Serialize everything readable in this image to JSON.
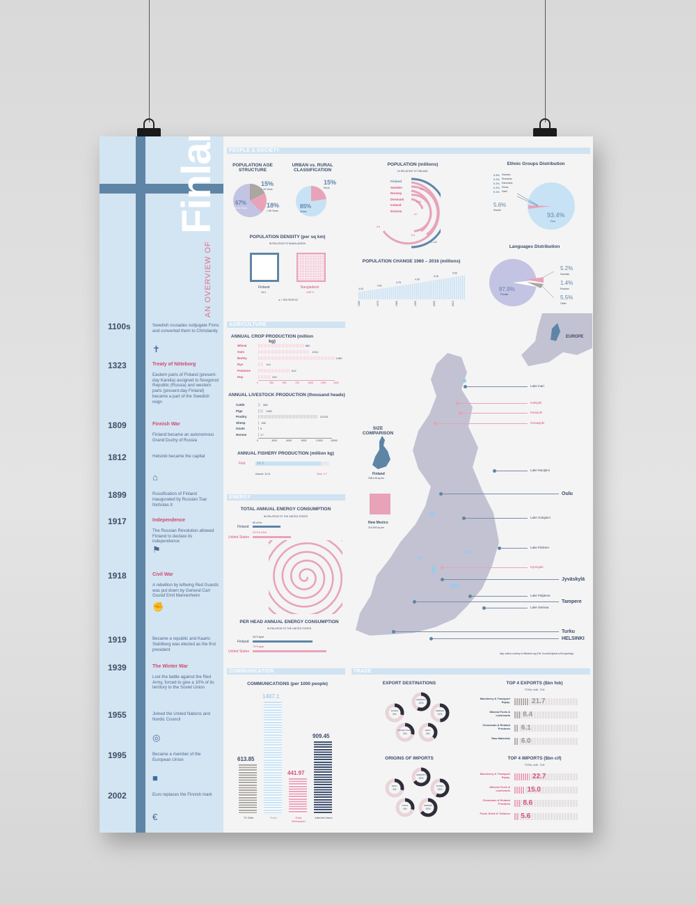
{
  "title": "Finland",
  "subtitle": "AN OVERVIEW OF",
  "sections": {
    "people": "PEOPLE & SOCIETY",
    "agriculture": "AGRICULTURE",
    "energy": "ENERGY",
    "communication": "COMMUNICATION",
    "trade": "TRADE"
  },
  "timeline": [
    {
      "year": "1100s",
      "title": "",
      "text": "Swedish crusades subjugate Finns and converted them to Christianity",
      "icon": "cross-icon"
    },
    {
      "year": "1323",
      "title": "Treaty of Nöteborg",
      "text": "Eastern parts of Finland (present-day Karelia) assigned to Novgorod Republic (Russia) and western parts (present-day Finland) became a part of the Swedish reign",
      "icon": ""
    },
    {
      "year": "1809",
      "title": "Finnish War",
      "text": "Finland became an autonomous Grand Duchy of Russia",
      "icon": ""
    },
    {
      "year": "1812",
      "title": "",
      "text": "Helsinki became the capital",
      "icon": "building-icon"
    },
    {
      "year": "1899",
      "title": "",
      "text": "Russification of Finland inaugurated by Russian Tsar Nicholas II",
      "icon": ""
    },
    {
      "year": "1917",
      "title": "Independence",
      "text": "The Russian Revolution allowed Finland to declare its independence",
      "icon": "flag-icon"
    },
    {
      "year": "1918",
      "title": "Civil War",
      "text": "A rebellion by leftwing Red Guards was put down by General Carl Gustaf Emil Mannerheim",
      "icon": "fist-icon"
    },
    {
      "year": "1919",
      "title": "",
      "text": "Became a republic and Kaarlo Stahlberg was elected as the first president",
      "icon": ""
    },
    {
      "year": "1939",
      "title": "The Winter War",
      "text": "Lost the battle against the Red Army, forced to give a 10% of its territory to the Soviet Union",
      "icon": ""
    },
    {
      "year": "1955",
      "title": "",
      "text": "Joined the United Nations and Nordic Council",
      "icon": "un-icon"
    },
    {
      "year": "1995",
      "title": "",
      "text": "Became a member of the European Union",
      "icon": "eu-flag-icon"
    },
    {
      "year": "2002",
      "title": "",
      "text": "Euro replaces the Finnish mark",
      "icon": "euro-icon"
    }
  ],
  "age": {
    "title": "POPULATION AGE STRUCTURE",
    "p1": "67%",
    "l1": "15-65 Years",
    "p2": "15%",
    "l2": "< 15 Years",
    "p3": "18%",
    "l3": "> 65 Years"
  },
  "urban": {
    "title": "URBAN vs. RURAL CLASSIFICATION",
    "p1": "15%",
    "l1": "Rural",
    "p2": "85%",
    "l2": "Urban"
  },
  "population": {
    "title": "POPULATION (millions)",
    "sub": "IN RELATION TO FINLAND",
    "countries": [
      "Finland",
      "Sweden",
      "Norway",
      "Denmark",
      "Iceland",
      "Estonia"
    ],
    "values": [
      "5.498",
      "9.9",
      "5.3",
      "5.7",
      "0.33",
      "1.3"
    ]
  },
  "ethnic": {
    "title": "Ethnic Groups Distribution",
    "legend": [
      [
        "0.5%",
        "Swedes"
      ],
      [
        "0.2%",
        "Russians"
      ],
      [
        "0.1%",
        "Estonians"
      ],
      [
        "0.1%",
        "Roma"
      ],
      [
        "0.1%",
        "Sami"
      ]
    ],
    "other": "5.6%",
    "other_label": "Swede",
    "main": "93.4%",
    "main_label": "Finn"
  },
  "density": {
    "title": "POPULATION DENSITY (per sq km)",
    "sub": "IN RELATION TO BANGLADESH",
    "c1": "Finland",
    "v1": "16.3",
    "c2": "Bangladesh",
    "v2": "1067.5",
    "note": "● = TEN PEOPLE"
  },
  "popchange": {
    "title": "POPULATION CHANGE 1960 – 2016 (millions)",
    "labels": [
      "4.43",
      "4.61",
      "4.78",
      "4.99",
      "5.18",
      "5.50"
    ],
    "years": [
      "1960",
      "1970",
      "1980",
      "1990",
      "2000",
      "2010"
    ]
  },
  "languages": {
    "title": "Languages Distribution",
    "main": "87.9%",
    "main_label": "Finnish",
    "items": [
      [
        "5.2%",
        "Swedish"
      ],
      [
        "1.4%",
        "Russian"
      ],
      [
        "5.5%",
        "Other"
      ]
    ]
  },
  "crops": {
    "title": "ANNUAL CROP PRODUCTION (million kg)",
    "items": [
      [
        "Wheat",
        882
      ],
      [
        "Oats",
        1014
      ],
      [
        "Barley",
        1480
      ],
      [
        "Rye",
        114
      ],
      [
        "Potatoes",
        612
      ],
      [
        "Hay",
        232
      ]
    ],
    "ticks": [
      "0",
      "250",
      "500",
      "750",
      "1000",
      "1250",
      "1500"
    ]
  },
  "livestock": {
    "title": "ANNUAL LIVESTOCK PRODUCTION (thousand heads)",
    "items": [
      [
        "Cattle",
        582
      ],
      [
        "Pigs",
        1136
      ],
      [
        "Poultry",
        12126
      ],
      [
        "Sheep",
        156
      ],
      [
        "Goats",
        5
      ],
      [
        "Horses",
        17
      ]
    ],
    "ticks": [
      "0",
      "3000",
      "6000",
      "9000",
      "12000",
      "15000"
    ]
  },
  "fishery": {
    "title": "ANNUAL FISHERY PRODUCTION (million kg)",
    "label": "Fish",
    "value": "14.3",
    "inland": "Inland: 12.6",
    "sea": "Sea: 1.7"
  },
  "energy": {
    "title": "TOTAL ANNUAL ENERGY CONSUMPTION",
    "sub": "IN RELATION TO THE UNITED STATES",
    "c1": "Finland",
    "v1": "85 mToe",
    "c2": "United States",
    "v2": "2279.6 mToe",
    "title2": "PER HEAD ANNUAL ENERGY CONSUMPTION",
    "sub2": "IN RELATION TO THE UNITED STATES",
    "h1": "6470 kgoe",
    "h2": "7076 kgoe"
  },
  "communication": {
    "title": "COMMUNICATIONS (per 1000 people)",
    "items": [
      [
        "TV Sets",
        "613.85"
      ],
      [
        "Radio",
        "1407.1"
      ],
      [
        "Daily Newspaper",
        "441.97"
      ],
      [
        "Internet Users",
        "909.45"
      ]
    ]
  },
  "map": {
    "size_title": "SIZE COMPARISON",
    "finland": "Finland",
    "finland_area": "338,145 sq km",
    "nm": "New Mexico",
    "nm_area": "314,900 sq km",
    "europe": "EUROPE",
    "labels": [
      "Lake Inari",
      "Ivalojoki",
      "Kemijoki",
      "Ounasjoki",
      "Lake Muojärvi",
      "Oulu",
      "Lake Oulujärvi",
      "Lake Pielinen",
      "Kyrönjoki",
      "Jyväskylä",
      "Lake Päijänne",
      "Tampere",
      "Lake Saimaa",
      "Turku",
      "HELSINKI"
    ],
    "credit": "Map outline courtesy of Wikishire.org (File: Suomi/Koljakob.ru/Europe/Map)"
  },
  "exports": {
    "title": "EXPORT DESTINATIONS",
    "items": [
      [
        "GERMANY",
        "13%"
      ],
      [
        "SWEDEN",
        "11%"
      ],
      [
        "NETH.",
        "8%"
      ],
      [
        "UNITED STATES",
        "6%"
      ],
      [
        "RUSSIA",
        "6%"
      ]
    ],
    "top_title": "TOP 4 EXPORTS ($bn fob)",
    "top_sub": "TOTAL: bn$ - 79.8",
    "top": [
      [
        "Machinery & Transport Equip.",
        "21.7"
      ],
      [
        "Mineral Fuels & Lubricants",
        "8.4"
      ],
      [
        "Chemicals & Related Products",
        "6.1"
      ],
      [
        "Raw Materials",
        "6.0"
      ]
    ]
  },
  "imports": {
    "title": "ORIGINS OF IMPORTS",
    "items": [
      [
        "GERMANY",
        "15%"
      ],
      [
        "RUSSIA",
        "13%"
      ],
      [
        "SWEDEN",
        "15%"
      ],
      [
        "CHINA",
        "6%"
      ],
      [
        "NETH.",
        "6%"
      ]
    ],
    "top_title": "TOP 4 IMPORTS ($bn cif)",
    "top_sub": "TOTAL: bn$ - 73.8",
    "top": [
      [
        "Machinery & Transport Equip.",
        "22.7"
      ],
      [
        "Mineral Fuels & Lubricants",
        "15.0"
      ],
      [
        "Chemicals & Related Products",
        "8.6"
      ],
      [
        "Food, Drink & Tobacco",
        "5.6"
      ]
    ]
  },
  "colors": {
    "blue": "#5e85a6",
    "pink": "#e8a3b9",
    "light": "#d3e5f2",
    "grey": "#b5b3c6"
  }
}
